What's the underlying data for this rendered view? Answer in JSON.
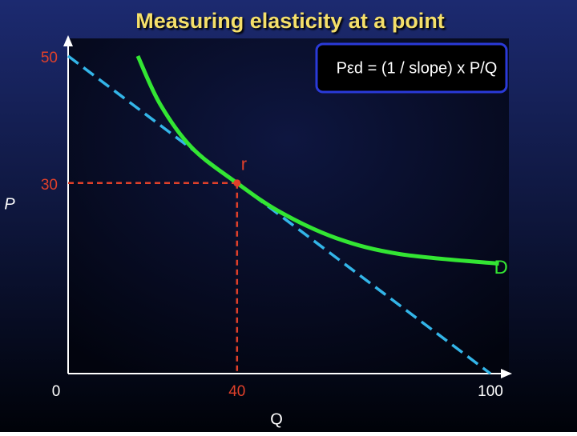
{
  "chart_data": {
    "type": "line",
    "title": "Measuring elasticity at a point",
    "formula": "Pεd =  (1 / slope) x P/Q",
    "x_label": "Q",
    "y_label": "P",
    "xlim": [
      0,
      100
    ],
    "ylim": [
      0,
      50
    ],
    "xticks": [
      0,
      40,
      100
    ],
    "xtick_colors": [
      "#ffffff",
      "#e0402a",
      "#ffffff"
    ],
    "yticks": [
      30,
      50
    ],
    "ytick_colors": [
      "#e0402a",
      "#e0402a"
    ],
    "tangent": {
      "color": "#33b5e8",
      "x": [
        0,
        100
      ],
      "y": [
        50,
        0
      ]
    },
    "demand": {
      "label": "D",
      "color": "#33e633",
      "x": [
        16.5,
        21.8,
        29.4,
        40,
        50.3,
        63.6,
        78.7,
        102
      ],
      "y": [
        50,
        42.4,
        35.5,
        30,
        25.4,
        21.3,
        18.8,
        17.3
      ]
    },
    "point": {
      "label": "r",
      "x": 40,
      "y": 30,
      "color": "#e0402a"
    }
  }
}
